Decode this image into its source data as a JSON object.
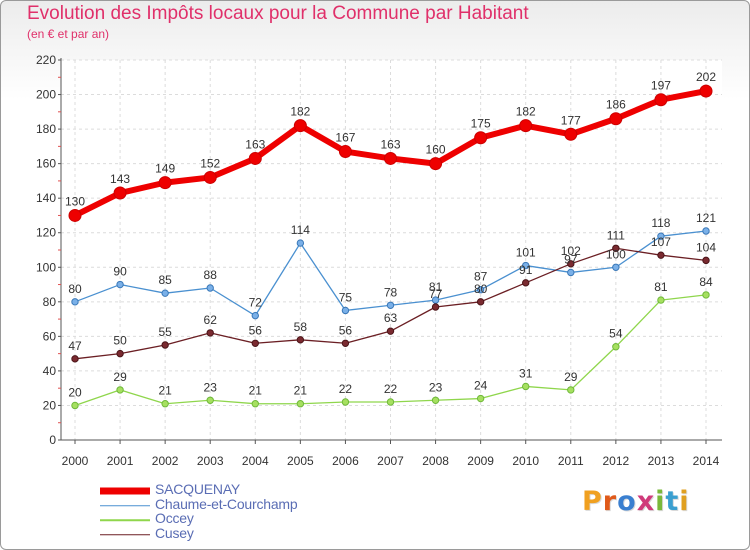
{
  "header": {
    "title": "Evolution des Impôts locaux pour la Commune par Habitant",
    "subtitle": "(en € et par an)"
  },
  "chart_data": {
    "type": "line",
    "title": "Evolution des Impôts locaux pour la Commune par Habitant",
    "subtitle": "(en € et par an)",
    "xlabel": "",
    "ylabel": "",
    "x": [
      "2000",
      "2001",
      "2002",
      "2003",
      "2004",
      "2005",
      "2006",
      "2007",
      "2008",
      "2009",
      "2010",
      "2011",
      "2012",
      "2013",
      "2014"
    ],
    "ylim": [
      0,
      220
    ],
    "yticks": [
      0,
      20,
      40,
      60,
      80,
      100,
      120,
      140,
      160,
      180,
      200,
      220
    ],
    "grid": true,
    "legend_position": "bottom-left",
    "series": [
      {
        "name": "SACQUENAY",
        "color": "#ee0000",
        "values": [
          130,
          143,
          149,
          152,
          163,
          182,
          167,
          163,
          160,
          175,
          182,
          177,
          186,
          197,
          202
        ]
      },
      {
        "name": "Chaume-et-Courchamp",
        "color": "#4a90d0",
        "values": [
          80,
          90,
          85,
          88,
          72,
          114,
          75,
          78,
          81,
          87,
          101,
          97,
          100,
          118,
          121
        ]
      },
      {
        "name": "Occey",
        "color": "#8fd64c",
        "values": [
          20,
          29,
          21,
          23,
          21,
          21,
          22,
          22,
          23,
          24,
          31,
          29,
          54,
          81,
          84
        ]
      },
      {
        "name": "Cusey",
        "color": "#6b1f24",
        "values": [
          47,
          50,
          55,
          62,
          56,
          58,
          56,
          63,
          77,
          80,
          91,
          102,
          111,
          107,
          104
        ]
      }
    ]
  },
  "logo": {
    "text": "Proxiti",
    "colors": [
      "#f0a020",
      "#e05a1a",
      "#3a7fd0",
      "#d03a7a",
      "#7ab83a",
      "#3a9fd0",
      "#e0a020"
    ]
  }
}
